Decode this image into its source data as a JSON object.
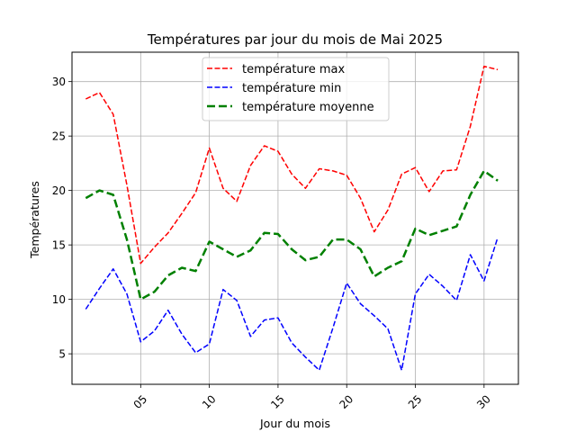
{
  "chart_data": {
    "type": "line",
    "title": "Températures par jour du mois de Mai 2025",
    "xlabel": "Jour du mois",
    "ylabel": "Températures",
    "xlim": [
      0,
      32.5
    ],
    "ylim": [
      2.2,
      32.7
    ],
    "grid": true,
    "legend_position": "top-center",
    "x_ticks": [
      5,
      10,
      15,
      20,
      25,
      30
    ],
    "x_tick_labels": [
      "05",
      "10",
      "15",
      "20",
      "25",
      "30"
    ],
    "x_tick_rotation": -45,
    "y_ticks": [
      5,
      10,
      15,
      20,
      25,
      30
    ],
    "y_tick_labels": [
      "5",
      "10",
      "15",
      "20",
      "25",
      "30"
    ],
    "x": [
      1,
      2,
      3,
      4,
      5,
      6,
      7,
      8,
      9,
      10,
      11,
      12,
      13,
      14,
      15,
      16,
      17,
      18,
      19,
      20,
      21,
      22,
      23,
      24,
      25,
      26,
      27,
      28,
      29,
      30,
      31
    ],
    "series": [
      {
        "name": "température max",
        "color": "#ff0000",
        "line_style": "dashed",
        "line_width": 1.5,
        "values": [
          28.4,
          29.0,
          27.0,
          20.5,
          13.3,
          14.8,
          16.1,
          17.9,
          19.8,
          23.9,
          20.2,
          19.0,
          22.3,
          24.1,
          23.6,
          21.5,
          20.2,
          22.0,
          21.8,
          21.4,
          19.3,
          16.2,
          18.2,
          21.5,
          22.1,
          19.9,
          21.8,
          21.9,
          25.9,
          31.4,
          31.1
        ]
      },
      {
        "name": "température min",
        "color": "#0000ff",
        "line_style": "dashed",
        "line_width": 1.5,
        "values": [
          9.1,
          11.0,
          12.8,
          10.5,
          6.1,
          7.1,
          9.0,
          6.8,
          5.1,
          5.9,
          10.9,
          9.9,
          6.6,
          8.1,
          8.3,
          6.0,
          4.7,
          3.5,
          7.4,
          11.5,
          9.6,
          8.5,
          7.3,
          3.5,
          10.5,
          12.3,
          11.2,
          9.9,
          14.1,
          11.7,
          15.7
        ]
      },
      {
        "name": "température moyenne",
        "color": "#008000",
        "line_style": "dashed",
        "line_width": 2.5,
        "values": [
          19.3,
          20.0,
          19.6,
          15.5,
          10.0,
          10.7,
          12.2,
          12.9,
          12.6,
          15.3,
          14.6,
          13.9,
          14.5,
          16.1,
          16.0,
          14.6,
          13.6,
          13.9,
          15.5,
          15.5,
          14.6,
          12.1,
          12.9,
          13.5,
          16.5,
          15.9,
          16.3,
          16.7,
          19.6,
          21.8,
          20.9
        ]
      }
    ]
  }
}
